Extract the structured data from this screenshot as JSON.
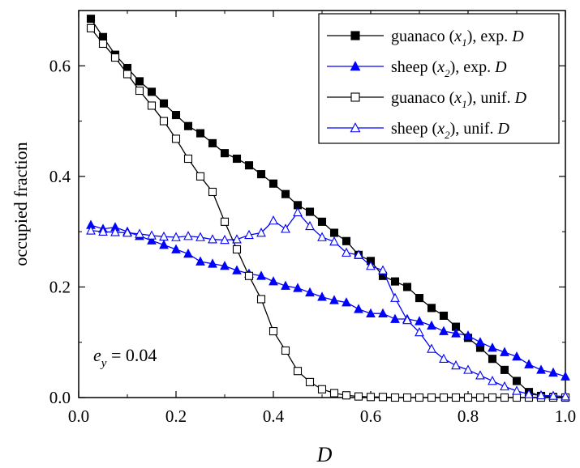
{
  "chart_data": {
    "type": "line",
    "title": "",
    "xlabel": "D",
    "ylabel": "occupied fraction",
    "xlim": [
      0.0,
      1.0
    ],
    "ylim": [
      0.0,
      0.7
    ],
    "xticks": [
      "0.0",
      "0.2",
      "0.4",
      "0.6",
      "0.8",
      "1.0"
    ],
    "yticks": [
      "0.0",
      "0.2",
      "0.4",
      "0.6"
    ],
    "annotation": {
      "symbol": "e",
      "subscript": "y",
      "text": " = 0.04"
    },
    "legend_position": "top-right",
    "grid": false,
    "x": [
      0.025,
      0.05,
      0.075,
      0.1,
      0.125,
      0.15,
      0.175,
      0.2,
      0.225,
      0.25,
      0.275,
      0.3,
      0.325,
      0.35,
      0.375,
      0.4,
      0.425,
      0.45,
      0.475,
      0.5,
      0.525,
      0.55,
      0.575,
      0.6,
      0.625,
      0.65,
      0.675,
      0.7,
      0.725,
      0.75,
      0.775,
      0.8,
      0.825,
      0.85,
      0.875,
      0.9,
      0.925,
      0.95,
      0.975,
      1.0
    ],
    "series": [
      {
        "name": "guanaco (x1), exp. D",
        "legend": {
          "pre": "guanaco (",
          "var": "x",
          "sub": "1",
          "post": "),  exp. ",
          "tail": "D"
        },
        "color": "#000000",
        "marker": "square",
        "filled": true,
        "values": [
          0.685,
          0.652,
          0.62,
          0.596,
          0.572,
          0.553,
          0.532,
          0.511,
          0.491,
          0.478,
          0.46,
          0.442,
          0.432,
          0.42,
          0.404,
          0.387,
          0.368,
          0.348,
          0.336,
          0.318,
          0.298,
          0.283,
          0.258,
          0.247,
          0.22,
          0.21,
          0.2,
          0.18,
          0.162,
          0.148,
          0.128,
          0.108,
          0.09,
          0.07,
          0.05,
          0.03,
          0.01,
          0.003,
          0.001,
          0.0
        ]
      },
      {
        "name": "sheep (x2), exp. D",
        "legend": {
          "pre": "sheep (",
          "var": "x",
          "sub": "2",
          "post": "), exp. ",
          "tail": "D"
        },
        "color": "#0000ff",
        "marker": "triangle",
        "filled": true,
        "values": [
          0.312,
          0.305,
          0.308,
          0.3,
          0.292,
          0.284,
          0.276,
          0.268,
          0.26,
          0.246,
          0.242,
          0.238,
          0.23,
          0.224,
          0.22,
          0.21,
          0.202,
          0.198,
          0.19,
          0.182,
          0.176,
          0.172,
          0.16,
          0.152,
          0.152,
          0.142,
          0.142,
          0.138,
          0.13,
          0.12,
          0.116,
          0.112,
          0.1,
          0.09,
          0.082,
          0.074,
          0.06,
          0.05,
          0.045,
          0.038
        ]
      },
      {
        "name": "guanaco (x1), unif. D",
        "legend": {
          "pre": "guanaco (",
          "var": "x",
          "sub": "1",
          "post": "), unif. ",
          "tail": "D"
        },
        "color": "#000000",
        "marker": "square",
        "filled": false,
        "values": [
          0.668,
          0.64,
          0.615,
          0.585,
          0.555,
          0.528,
          0.5,
          0.468,
          0.432,
          0.4,
          0.372,
          0.318,
          0.268,
          0.22,
          0.178,
          0.12,
          0.085,
          0.048,
          0.028,
          0.015,
          0.008,
          0.004,
          0.002,
          0.001,
          0.001,
          0.0,
          0.0,
          0.0,
          0.0,
          0.0,
          0.0,
          0.0,
          0.0,
          0.0,
          0.0,
          0.0,
          0.0,
          0.0,
          0.0,
          0.0
        ]
      },
      {
        "name": "sheep (x2), unif. D",
        "legend": {
          "pre": "sheep (",
          "var": "x",
          "sub": "2",
          "post": "), unif. ",
          "tail": "D"
        },
        "color": "#0000ff",
        "marker": "triangle",
        "filled": false,
        "values": [
          0.302,
          0.3,
          0.299,
          0.298,
          0.296,
          0.293,
          0.291,
          0.29,
          0.292,
          0.29,
          0.286,
          0.285,
          0.286,
          0.294,
          0.298,
          0.32,
          0.305,
          0.335,
          0.31,
          0.29,
          0.282,
          0.262,
          0.258,
          0.238,
          0.23,
          0.18,
          0.14,
          0.118,
          0.088,
          0.07,
          0.058,
          0.05,
          0.04,
          0.03,
          0.02,
          0.012,
          0.006,
          0.004,
          0.003,
          0.002
        ]
      }
    ]
  }
}
